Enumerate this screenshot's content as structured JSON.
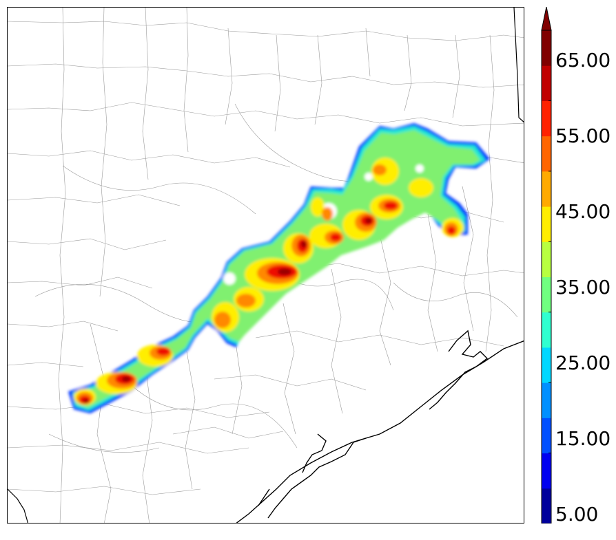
{
  "colorbar": {
    "tick_labels": [
      "5.00",
      "15.00",
      "25.00",
      "35.00",
      "45.00",
      "55.00",
      "65.00"
    ],
    "colors": [
      "#00009c",
      "#0000f0",
      "#0050ff",
      "#0090ff",
      "#00d8ff",
      "#30ffd0",
      "#70ff80",
      "#b8ff40",
      "#ffee00",
      "#ffaa00",
      "#ff6600",
      "#ff2200",
      "#c00000",
      "#800000"
    ],
    "extend": "max"
  }
}
